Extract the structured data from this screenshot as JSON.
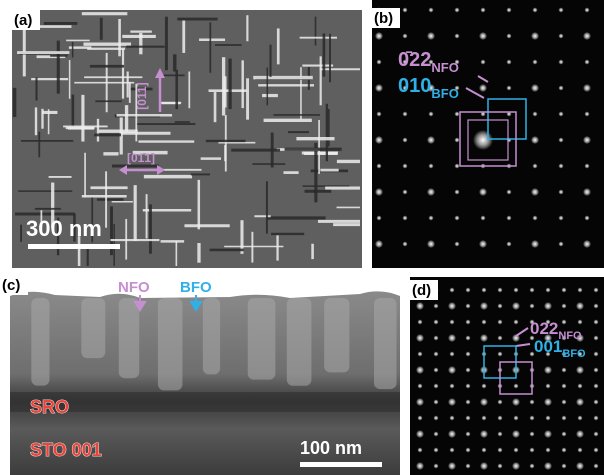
{
  "panel_a": {
    "label": "(a)",
    "scale_bar": "300 nm",
    "direction_vertical": "[011]",
    "direction_horizontal": "[01̄1]"
  },
  "panel_b": {
    "label": "(b)",
    "spots": [
      {
        "index": "0̄22",
        "phase": "NFO"
      },
      {
        "index": "010",
        "phase": "BFO"
      }
    ]
  },
  "panel_c": {
    "label": "(c)",
    "arrows": [
      "NFO",
      "BFO"
    ],
    "layers": [
      "SRO",
      "STO 001"
    ],
    "scale_bar": "100 nm"
  },
  "panel_d": {
    "label": "(d)",
    "spots": [
      {
        "index": "022",
        "phase": "NFO"
      },
      {
        "index": "001",
        "phase": "BFO"
      }
    ]
  }
}
